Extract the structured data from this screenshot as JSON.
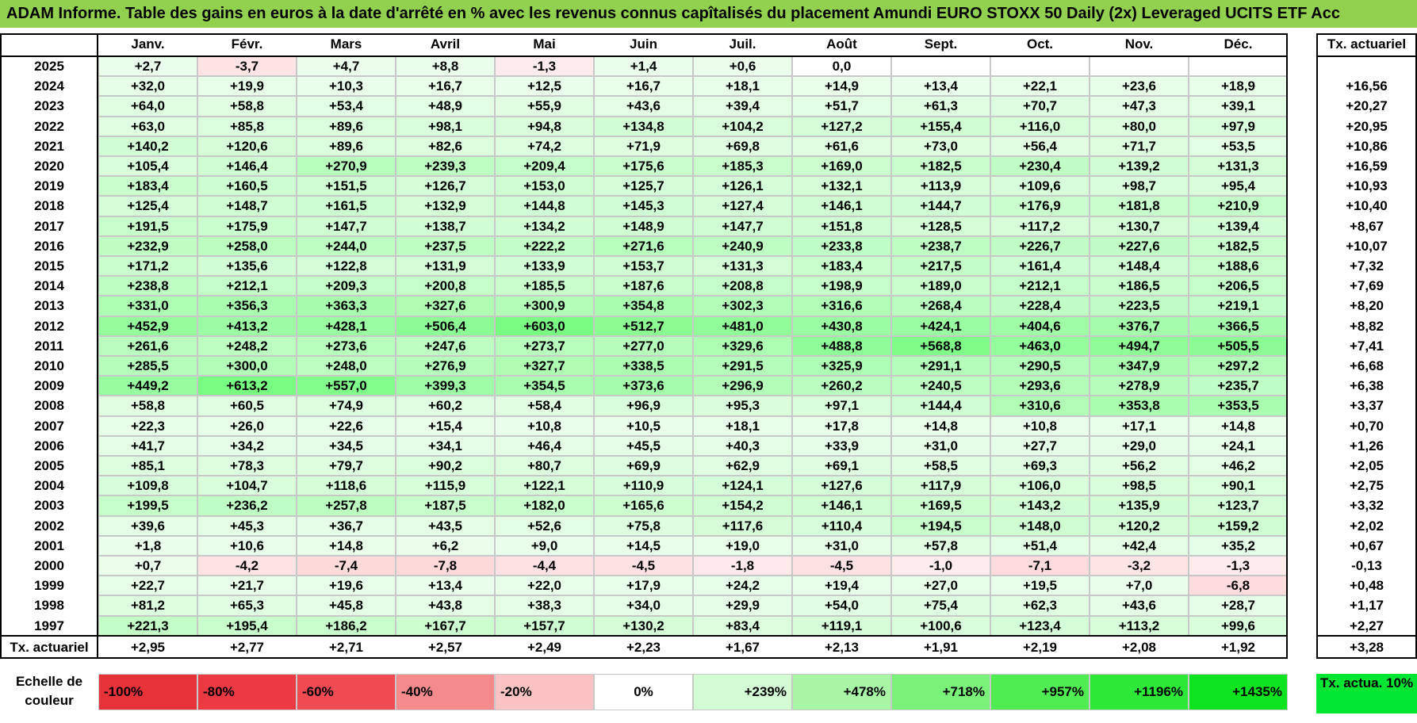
{
  "title": "ADAM Informe. Table des gains en euros à la date d'arrêté en % avec les revenus connus capîtalisés du placement Amundi EURO STOXX 50 Daily (2x) Leveraged UCITS ETF Acc",
  "chart_data": {
    "type": "table",
    "months": [
      "Janv.",
      "Févr.",
      "Mars",
      "Avril",
      "Mai",
      "Juin",
      "Juil.",
      "Août",
      "Sept.",
      "Oct.",
      "Nov.",
      "Déc."
    ],
    "rate_header": "Tx. actuariel",
    "rows": [
      {
        "year": "2025",
        "values": [
          "+2,7",
          "-3,7",
          "+4,7",
          "+8,8",
          "-1,3",
          "+1,4",
          "+0,6",
          "0,0",
          "",
          "",
          "",
          ""
        ],
        "rate": ""
      },
      {
        "year": "2024",
        "values": [
          "+32,0",
          "+19,9",
          "+10,3",
          "+16,7",
          "+12,5",
          "+16,7",
          "+18,1",
          "+14,9",
          "+13,4",
          "+22,1",
          "+23,6",
          "+18,9"
        ],
        "rate": "+16,56"
      },
      {
        "year": "2023",
        "values": [
          "+64,0",
          "+58,8",
          "+53,4",
          "+48,9",
          "+55,9",
          "+43,6",
          "+39,4",
          "+51,7",
          "+61,3",
          "+70,7",
          "+47,3",
          "+39,1"
        ],
        "rate": "+20,27"
      },
      {
        "year": "2022",
        "values": [
          "+63,0",
          "+85,8",
          "+89,6",
          "+98,1",
          "+94,8",
          "+134,8",
          "+104,2",
          "+127,2",
          "+155,4",
          "+116,0",
          "+80,0",
          "+97,9"
        ],
        "rate": "+20,95"
      },
      {
        "year": "2021",
        "values": [
          "+140,2",
          "+120,6",
          "+89,6",
          "+82,6",
          "+74,2",
          "+71,9",
          "+69,8",
          "+61,6",
          "+73,0",
          "+56,4",
          "+71,7",
          "+53,5"
        ],
        "rate": "+10,86"
      },
      {
        "year": "2020",
        "values": [
          "+105,4",
          "+146,4",
          "+270,9",
          "+239,3",
          "+209,4",
          "+175,6",
          "+185,3",
          "+169,0",
          "+182,5",
          "+230,4",
          "+139,2",
          "+131,3"
        ],
        "rate": "+16,59"
      },
      {
        "year": "2019",
        "values": [
          "+183,4",
          "+160,5",
          "+151,5",
          "+126,7",
          "+153,0",
          "+125,7",
          "+126,1",
          "+132,1",
          "+113,9",
          "+109,6",
          "+98,7",
          "+95,4"
        ],
        "rate": "+10,93"
      },
      {
        "year": "2018",
        "values": [
          "+125,4",
          "+148,7",
          "+161,5",
          "+132,9",
          "+144,8",
          "+145,3",
          "+127,4",
          "+146,1",
          "+144,7",
          "+176,9",
          "+181,8",
          "+210,9"
        ],
        "rate": "+10,40"
      },
      {
        "year": "2017",
        "values": [
          "+191,5",
          "+175,9",
          "+147,7",
          "+138,7",
          "+134,2",
          "+148,9",
          "+147,7",
          "+151,8",
          "+128,5",
          "+117,2",
          "+130,7",
          "+139,4"
        ],
        "rate": "+8,67"
      },
      {
        "year": "2016",
        "values": [
          "+232,9",
          "+258,0",
          "+244,0",
          "+237,5",
          "+222,2",
          "+271,6",
          "+240,9",
          "+233,8",
          "+238,7",
          "+226,7",
          "+227,6",
          "+182,5"
        ],
        "rate": "+10,07"
      },
      {
        "year": "2015",
        "values": [
          "+171,2",
          "+135,6",
          "+122,8",
          "+131,9",
          "+133,9",
          "+153,7",
          "+131,3",
          "+183,4",
          "+217,5",
          "+161,4",
          "+148,4",
          "+188,6"
        ],
        "rate": "+7,32"
      },
      {
        "year": "2014",
        "values": [
          "+238,8",
          "+212,1",
          "+209,3",
          "+200,8",
          "+185,5",
          "+187,6",
          "+208,8",
          "+198,9",
          "+189,0",
          "+212,1",
          "+186,5",
          "+206,5"
        ],
        "rate": "+7,69"
      },
      {
        "year": "2013",
        "values": [
          "+331,0",
          "+356,3",
          "+363,3",
          "+327,6",
          "+300,9",
          "+354,8",
          "+302,3",
          "+316,6",
          "+268,4",
          "+228,4",
          "+223,5",
          "+219,1"
        ],
        "rate": "+8,20"
      },
      {
        "year": "2012",
        "values": [
          "+452,9",
          "+413,2",
          "+428,1",
          "+506,4",
          "+603,0",
          "+512,7",
          "+481,0",
          "+430,8",
          "+424,1",
          "+404,6",
          "+376,7",
          "+366,5"
        ],
        "rate": "+8,82"
      },
      {
        "year": "2011",
        "values": [
          "+261,6",
          "+248,2",
          "+273,6",
          "+247,6",
          "+273,7",
          "+277,0",
          "+329,6",
          "+488,8",
          "+568,8",
          "+463,0",
          "+494,7",
          "+505,5"
        ],
        "rate": "+7,41"
      },
      {
        "year": "2010",
        "values": [
          "+285,5",
          "+300,0",
          "+248,0",
          "+276,9",
          "+327,7",
          "+338,5",
          "+291,5",
          "+325,9",
          "+291,1",
          "+290,5",
          "+347,9",
          "+297,2"
        ],
        "rate": "+6,68"
      },
      {
        "year": "2009",
        "values": [
          "+449,2",
          "+613,2",
          "+557,0",
          "+399,3",
          "+354,5",
          "+373,6",
          "+296,9",
          "+260,2",
          "+240,5",
          "+293,6",
          "+278,9",
          "+235,7"
        ],
        "rate": "+6,38"
      },
      {
        "year": "2008",
        "values": [
          "+58,8",
          "+60,5",
          "+74,9",
          "+60,2",
          "+58,4",
          "+96,9",
          "+95,3",
          "+97,1",
          "+144,4",
          "+310,6",
          "+353,8",
          "+353,5"
        ],
        "rate": "+3,37"
      },
      {
        "year": "2007",
        "values": [
          "+22,3",
          "+26,0",
          "+22,6",
          "+15,4",
          "+10,8",
          "+10,5",
          "+18,1",
          "+17,8",
          "+14,8",
          "+10,8",
          "+17,1",
          "+14,8"
        ],
        "rate": "+0,70"
      },
      {
        "year": "2006",
        "values": [
          "+41,7",
          "+34,2",
          "+34,5",
          "+34,1",
          "+46,4",
          "+45,5",
          "+40,3",
          "+33,9",
          "+31,0",
          "+27,7",
          "+29,0",
          "+24,1"
        ],
        "rate": "+1,26"
      },
      {
        "year": "2005",
        "values": [
          "+85,1",
          "+78,3",
          "+79,7",
          "+90,2",
          "+80,7",
          "+69,9",
          "+62,9",
          "+69,1",
          "+58,5",
          "+69,3",
          "+56,2",
          "+46,2"
        ],
        "rate": "+2,05"
      },
      {
        "year": "2004",
        "values": [
          "+109,8",
          "+104,7",
          "+118,6",
          "+115,9",
          "+122,1",
          "+110,9",
          "+124,1",
          "+127,6",
          "+117,9",
          "+106,0",
          "+98,5",
          "+90,1"
        ],
        "rate": "+2,75"
      },
      {
        "year": "2003",
        "values": [
          "+199,5",
          "+236,2",
          "+257,8",
          "+187,5",
          "+182,0",
          "+165,6",
          "+154,2",
          "+146,1",
          "+169,5",
          "+143,2",
          "+135,9",
          "+123,7"
        ],
        "rate": "+3,32"
      },
      {
        "year": "2002",
        "values": [
          "+39,6",
          "+45,3",
          "+36,7",
          "+43,5",
          "+52,6",
          "+75,8",
          "+117,6",
          "+110,4",
          "+194,5",
          "+148,0",
          "+120,2",
          "+159,2"
        ],
        "rate": "+2,02"
      },
      {
        "year": "2001",
        "values": [
          "+1,8",
          "+10,6",
          "+14,8",
          "+6,2",
          "+9,0",
          "+14,5",
          "+19,0",
          "+31,0",
          "+57,8",
          "+51,4",
          "+42,4",
          "+35,2"
        ],
        "rate": "+0,67"
      },
      {
        "year": "2000",
        "values": [
          "+0,7",
          "-4,2",
          "-7,4",
          "-7,8",
          "-4,4",
          "-4,5",
          "-1,8",
          "-4,5",
          "-1,0",
          "-7,1",
          "-3,2",
          "-1,3"
        ],
        "rate": "-0,13"
      },
      {
        "year": "1999",
        "values": [
          "+22,7",
          "+21,7",
          "+19,6",
          "+13,4",
          "+22,0",
          "+17,9",
          "+24,2",
          "+19,4",
          "+27,0",
          "+19,5",
          "+7,0",
          "-6,8"
        ],
        "rate": "+0,48"
      },
      {
        "year": "1998",
        "values": [
          "+81,2",
          "+65,3",
          "+45,8",
          "+43,8",
          "+38,3",
          "+34,0",
          "+29,9",
          "+54,0",
          "+75,4",
          "+62,3",
          "+43,6",
          "+28,7"
        ],
        "rate": "+1,17"
      },
      {
        "year": "1997",
        "values": [
          "+221,3",
          "+195,4",
          "+186,2",
          "+167,7",
          "+157,7",
          "+130,2",
          "+83,4",
          "+119,1",
          "+100,6",
          "+123,4",
          "+113,2",
          "+99,6"
        ],
        "rate": "+2,27"
      }
    ],
    "totals": {
      "label": "Tx. actuariel",
      "values": [
        "+2,95",
        "+2,77",
        "+2,71",
        "+2,57",
        "+2,49",
        "+2,23",
        "+1,67",
        "+2,13",
        "+1,91",
        "+2,19",
        "+2,08",
        "+1,92"
      ],
      "rate": "+3,28"
    },
    "color_scale": {
      "label": "Echelle de couleur",
      "steps": [
        {
          "label": "-100%",
          "color": "#e8323a"
        },
        {
          "label": "-80%",
          "color": "#ec3a43"
        },
        {
          "label": "-60%",
          "color": "#f04b52"
        },
        {
          "label": "-40%",
          "color": "#f58a8c"
        },
        {
          "label": "-20%",
          "color": "#fac3c3"
        },
        {
          "label": "0%",
          "color": "#ffffff"
        },
        {
          "label": "+239%",
          "color": "#d4fcd4"
        },
        {
          "label": "+478%",
          "color": "#a8f7a6"
        },
        {
          "label": "+718%",
          "color": "#7af27a"
        },
        {
          "label": "+957%",
          "color": "#50ed52"
        },
        {
          "label": "+1196%",
          "color": "#2de836"
        },
        {
          "label": "+1435%",
          "color": "#0ee31f"
        }
      ],
      "rate_legend": "Tx. actua. 10%",
      "rate_legend_color": "#00e633"
    },
    "colors": {
      "title_bg": "#92d050",
      "positive_max": "#0ee31f",
      "negative_max": "#e8323a"
    }
  }
}
